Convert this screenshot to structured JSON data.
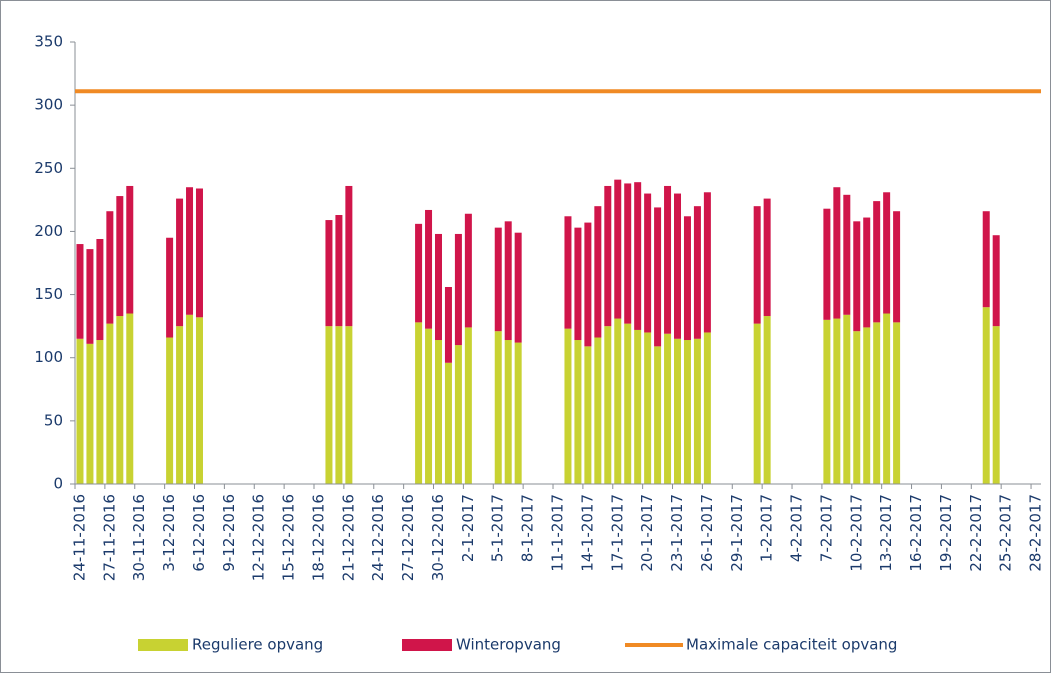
{
  "chart_data": {
    "type": "stacked_bar",
    "categories": [
      "24-11-2016",
      null,
      null,
      "27-11-2016",
      null,
      null,
      "30-11-2016",
      null,
      null,
      "3-12-2016",
      null,
      null,
      "6-12-2016",
      null,
      null,
      "9-12-2016",
      null,
      null,
      "12-12-2016",
      null,
      null,
      "15-12-2016",
      null,
      null,
      "18-12-2016",
      null,
      null,
      "21-12-2016",
      null,
      null,
      "24-12-2016",
      null,
      null,
      "27-12-2016",
      null,
      null,
      "30-12-2016",
      null,
      null,
      "2-1-2017",
      null,
      null,
      "5-1-2017",
      null,
      null,
      "8-1-2017",
      null,
      null,
      "11-1-2017",
      null,
      null,
      "14-1-2017",
      null,
      null,
      "17-1-2017",
      null,
      null,
      "20-1-2017",
      null,
      null,
      "23-1-2017",
      null,
      null,
      "26-1-2017",
      null,
      null,
      "29-1-2017",
      null,
      null,
      "1-2-2017",
      null,
      null,
      "4-2-2017",
      null,
      null,
      "7-2-2017",
      null,
      null,
      "10-2-2017",
      null,
      null,
      "13-2-2017",
      null,
      null,
      "16-2-2017",
      null,
      null,
      "19-2-2017",
      null,
      null,
      "22-2-2017",
      null,
      null,
      "25-2-2017",
      null,
      null,
      "28-2-2017"
    ],
    "series": [
      {
        "name": "Reguliere opvang",
        "color": "#c8d232",
        "values": [
          115,
          111,
          114,
          127,
          133,
          135,
          null,
          null,
          null,
          116,
          125,
          134,
          132,
          null,
          null,
          null,
          null,
          null,
          null,
          null,
          null,
          null,
          null,
          null,
          null,
          125,
          125,
          125,
          null,
          null,
          null,
          null,
          null,
          null,
          128,
          123,
          114,
          96,
          110,
          124,
          null,
          null,
          121,
          114,
          112,
          null,
          null,
          null,
          null,
          123,
          114,
          109,
          116,
          125,
          131,
          127,
          122,
          120,
          109,
          119,
          115,
          114,
          115,
          120,
          null,
          null,
          null,
          null,
          127,
          133,
          null,
          null,
          null,
          null,
          null,
          130,
          131,
          134,
          121,
          124,
          128,
          135,
          128,
          null,
          null,
          null,
          null,
          null,
          null,
          null,
          null,
          140,
          125,
          null,
          null,
          null,
          null
        ]
      },
      {
        "name": "Winteropvang",
        "color": "#d0154a",
        "values": [
          75,
          75,
          80,
          89,
          95,
          101,
          null,
          null,
          null,
          79,
          101,
          101,
          102,
          null,
          null,
          null,
          null,
          null,
          null,
          null,
          null,
          null,
          null,
          null,
          null,
          84,
          88,
          111,
          null,
          null,
          null,
          null,
          null,
          null,
          78,
          94,
          84,
          60,
          88,
          90,
          null,
          null,
          82,
          94,
          87,
          null,
          null,
          null,
          null,
          89,
          89,
          98,
          104,
          111,
          110,
          111,
          117,
          110,
          110,
          117,
          115,
          98,
          105,
          111,
          null,
          null,
          null,
          null,
          93,
          93,
          null,
          null,
          null,
          null,
          null,
          88,
          104,
          95,
          87,
          87,
          96,
          96,
          88,
          null,
          null,
          null,
          null,
          null,
          null,
          null,
          null,
          76,
          72,
          null,
          null,
          null,
          null
        ]
      }
    ],
    "reference_line": {
      "name": "Maximale capaciteit opvang",
      "color": "#f08a24",
      "value": 311
    },
    "ylim": [
      0,
      350
    ],
    "yticks": [
      0,
      50,
      100,
      150,
      200,
      250,
      300,
      350
    ],
    "grid": false
  }
}
